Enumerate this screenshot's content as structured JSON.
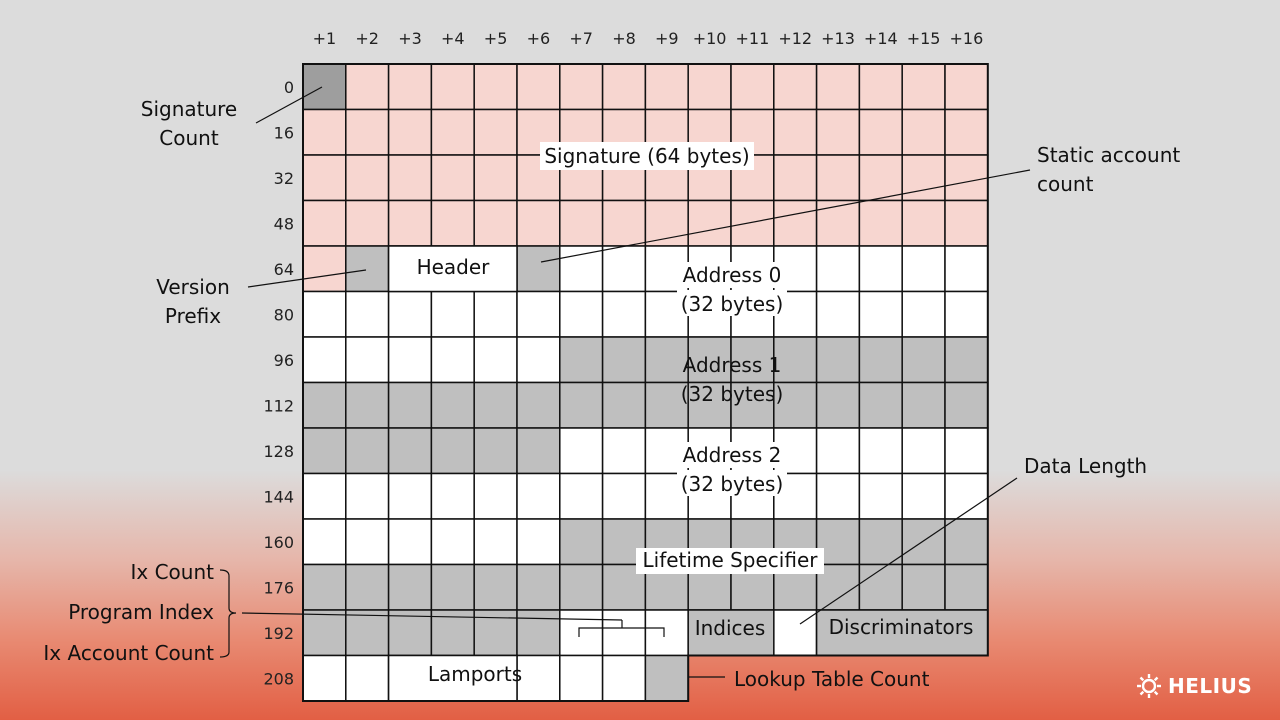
{
  "columns": [
    "+1",
    "+2",
    "+3",
    "+4",
    "+5",
    "+6",
    "+7",
    "+8",
    "+9",
    "+10",
    "+11",
    "+12",
    "+13",
    "+14",
    "+15",
    "+16"
  ],
  "rows": [
    "0",
    "16",
    "32",
    "48",
    "64",
    "80",
    "96",
    "112",
    "128",
    "144",
    "160",
    "176",
    "192",
    "208"
  ],
  "colors": {
    "signature": "#f7d6d0",
    "gray": "#bfbfbf",
    "dark_gray": "#9e9e9e",
    "white": "#ffffff",
    "grid_line": "#111111"
  },
  "inner_labels": {
    "signature": "Signature (64 bytes)",
    "header": "Header",
    "address0_line1": "Address 0",
    "address0_line2": "(32 bytes)",
    "address1_line1": "Address 1",
    "address1_line2": "(32 bytes)",
    "address2_line1": "Address 2",
    "address2_line2": "(32 bytes)",
    "lifetime": "Lifetime Specifier",
    "indices": "Indices",
    "discriminators": "Discriminators",
    "lamports": "Lamports"
  },
  "callouts": {
    "signature_count_1": "Signature",
    "signature_count_2": "Count",
    "version_prefix_1": "Version",
    "version_prefix_2": "Prefix",
    "static_account_1": "Static account",
    "static_account_2": "count",
    "data_length": "Data Length",
    "ix_count": "Ix Count",
    "program_index": "Program Index",
    "ix_account_count": "Ix Account Count",
    "lookup_table_count": "Lookup Table  Count"
  },
  "brand": {
    "name": "HELIUS",
    "icon": "sun-gear-icon"
  }
}
